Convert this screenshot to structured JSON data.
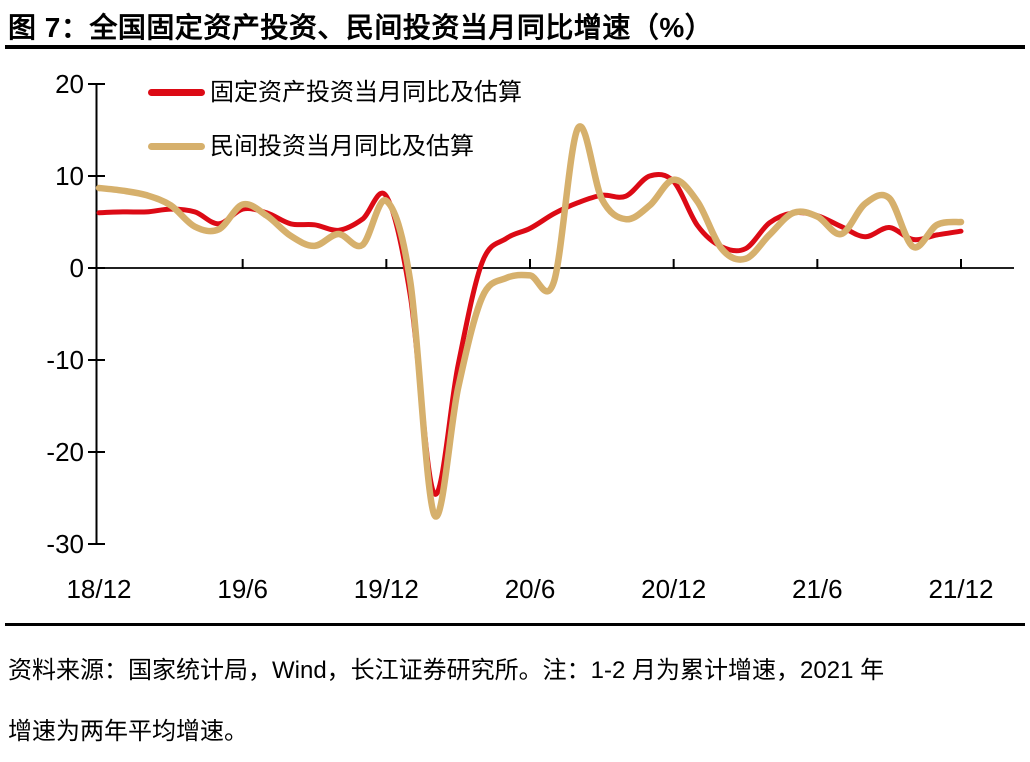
{
  "title": "图 7：全国固定资产投资、民间投资当月同比增速（%）",
  "source_note": {
    "line1": "资料来源：国家统计局，Wind，长江证券研究所。注：1-2 月为累计增速，2021 年",
    "line2": "增速为两年平均增速。"
  },
  "colors": {
    "fixed_asset_line": "#dc0a15",
    "private_line": "#d6b06c",
    "axis": "#000000",
    "rule": "#000000"
  },
  "chart_data": {
    "type": "line",
    "title": "全国固定资产投资、民间投资当月同比增速（%）",
    "legend_position": "top-left",
    "grid": false,
    "ylim": [
      -30,
      20
    ],
    "yticks": [
      20,
      10,
      0,
      -10,
      -20,
      -30
    ],
    "xticks": [
      "18/12",
      "19/6",
      "19/12",
      "20/6",
      "20/12",
      "21/6",
      "21/12"
    ],
    "x": [
      "18/12",
      "19/1",
      "19/2",
      "19/3",
      "19/4",
      "19/5",
      "19/6",
      "19/7",
      "19/8",
      "19/9",
      "19/10",
      "19/11",
      "19/12",
      "20/1",
      "20/2",
      "20/3",
      "20/4",
      "20/5",
      "20/6",
      "20/7",
      "20/8",
      "20/9",
      "20/10",
      "20/11",
      "20/12",
      "21/1",
      "21/2",
      "21/3",
      "21/4",
      "21/5",
      "21/6",
      "21/7",
      "21/8",
      "21/9",
      "21/10",
      "21/11",
      "21/12"
    ],
    "series": [
      {
        "name": "固定资产投资当月同比及估算",
        "color": "#dc0a15",
        "width": 5,
        "values": [
          6.0,
          6.1,
          6.1,
          6.4,
          6.1,
          4.8,
          6.4,
          6.0,
          4.8,
          4.7,
          4.1,
          5.3,
          7.8,
          -3.0,
          -24.5,
          -10.5,
          0.6,
          3.2,
          4.3,
          5.9,
          7.1,
          7.9,
          7.8,
          10.0,
          9.4,
          4.6,
          2.3,
          2.1,
          4.9,
          6.0,
          5.7,
          4.5,
          3.4,
          4.4,
          3.1,
          3.6,
          4.0
        ]
      },
      {
        "name": "民间投资当月同比及估算",
        "color": "#d6b06c",
        "width": 6.5,
        "values": [
          8.7,
          8.4,
          7.9,
          6.8,
          4.5,
          4.2,
          6.9,
          5.7,
          3.5,
          2.4,
          3.7,
          2.5,
          7.3,
          -1.5,
          -26.8,
          -13.0,
          -3.2,
          -1.1,
          -0.8,
          -1.5,
          15.2,
          7.5,
          5.3,
          6.8,
          9.6,
          7.2,
          2.1,
          1.0,
          3.6,
          6.0,
          5.6,
          3.7,
          7.0,
          7.6,
          2.3,
          4.7,
          5.0
        ]
      }
    ]
  }
}
